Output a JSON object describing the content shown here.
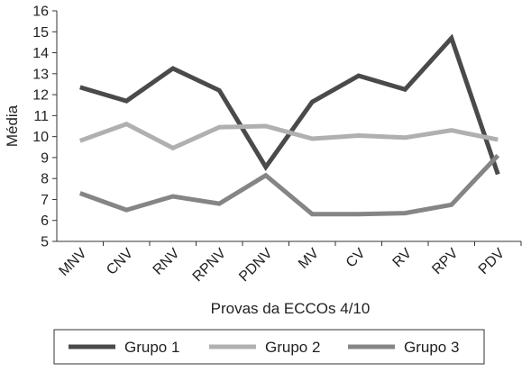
{
  "chart_data": {
    "type": "line",
    "categories": [
      "MNV",
      "CNV",
      "RNV",
      "RPNV",
      "PDNV",
      "MV",
      "CV",
      "RV",
      "RPV",
      "PDV"
    ],
    "series": [
      {
        "name": "Grupo 1",
        "color": "#4a4a4a",
        "values": [
          12.35,
          11.7,
          13.25,
          12.2,
          8.55,
          11.65,
          12.9,
          12.25,
          14.7,
          8.2
        ]
      },
      {
        "name": "Grupo 2",
        "color": "#b0b0b0",
        "values": [
          9.8,
          10.6,
          9.45,
          10.45,
          10.5,
          9.9,
          10.05,
          9.95,
          10.3,
          9.85
        ]
      },
      {
        "name": "Grupo 3",
        "color": "#858585",
        "values": [
          7.3,
          6.5,
          7.15,
          6.8,
          8.15,
          6.3,
          6.3,
          6.35,
          6.75,
          9.1
        ]
      }
    ],
    "y_ticks": [
      5,
      6,
      7,
      8,
      9,
      10,
      11,
      12,
      13,
      14,
      15,
      16
    ],
    "ylim": [
      5,
      16
    ],
    "xlabel": "Provas da ECCOs 4/10",
    "ylabel": "Média",
    "grid": false,
    "legend_position": "bottom"
  }
}
